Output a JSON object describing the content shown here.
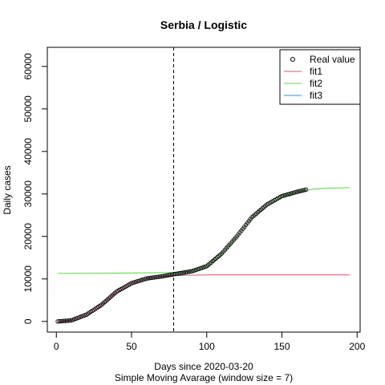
{
  "chart_data": {
    "type": "scatter",
    "title": "Serbia / Logistic",
    "xlabel": "Days since 2020-03-20",
    "subtitle": "Simple Moving Avarage (window size = 7)",
    "ylabel": "Daily cases",
    "xlim": [
      -6,
      202
    ],
    "ylim": [
      -2500,
      64500
    ],
    "x_ticks": [
      0,
      50,
      100,
      150,
      200
    ],
    "y_ticks": [
      0,
      10000,
      20000,
      30000,
      40000,
      50000,
      60000
    ],
    "vline": {
      "x": 78,
      "style": "dashed",
      "color": "#000000"
    },
    "legend": {
      "position": "top-right",
      "entries": [
        {
          "label": "Real value",
          "type": "point",
          "color": "#000000"
        },
        {
          "label": "fit1",
          "type": "line",
          "color": "#DF536B"
        },
        {
          "label": "fit2",
          "type": "line",
          "color": "#61D04F"
        },
        {
          "label": "fit3",
          "type": "line",
          "color": "#2297E6"
        }
      ]
    },
    "real_value": {
      "name": "Real value",
      "color": "#000000",
      "x_range": [
        1,
        166
      ],
      "x": [
        1,
        10,
        20,
        30,
        40,
        50,
        60,
        70,
        78,
        90,
        100,
        110,
        120,
        130,
        140,
        150,
        160,
        166
      ],
      "y": [
        0,
        250,
        1600,
        3900,
        7000,
        9000,
        10100,
        10600,
        11100,
        11800,
        13000,
        16000,
        20000,
        24500,
        27500,
        29500,
        30500,
        31000
      ]
    },
    "series": [
      {
        "name": "fit1",
        "color": "#DF536B",
        "x": [
          1,
          10,
          20,
          30,
          40,
          50,
          60,
          70,
          78,
          100,
          150,
          195
        ],
        "y": [
          0,
          250,
          1600,
          3900,
          7000,
          9000,
          10100,
          10600,
          10800,
          10950,
          10950,
          10950
        ]
      },
      {
        "name": "fit2",
        "color": "#61D04F",
        "x": [
          1,
          30,
          60,
          78,
          90,
          100,
          110,
          120,
          130,
          140,
          150,
          160,
          170,
          180,
          195
        ],
        "y": [
          11300,
          11350,
          11450,
          11500,
          11800,
          13000,
          16000,
          20000,
          24500,
          27500,
          29500,
          30500,
          31100,
          31350,
          31500
        ]
      },
      {
        "name": "fit3",
        "color": "#2297E6",
        "x": [],
        "y": []
      }
    ]
  }
}
